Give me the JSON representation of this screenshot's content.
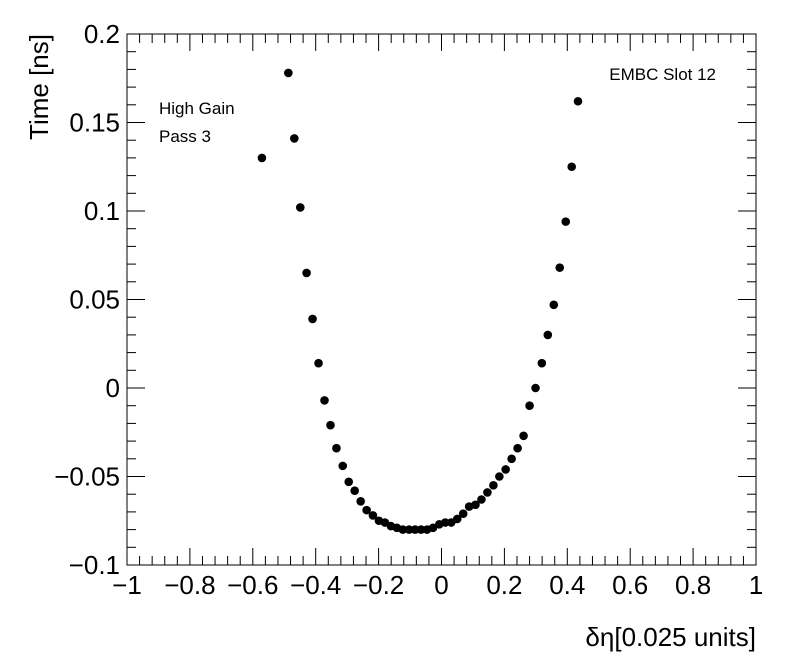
{
  "chart_data": {
    "type": "scatter",
    "xlabel": "δη[0.025 units]",
    "ylabel": "Time [ns]",
    "xlim": [
      -1,
      1
    ],
    "ylim": [
      -0.1,
      0.2
    ],
    "grid": false,
    "x_ticks": [
      -1,
      -0.8,
      -0.6,
      -0.4,
      -0.2,
      0,
      0.2,
      0.4,
      0.6,
      0.8,
      1
    ],
    "x_tick_labels": [
      "−1",
      "−0.8",
      "−0.6",
      "−0.4",
      "−0.2",
      "0",
      "0.2",
      "0.4",
      "0.6",
      "0.8",
      "1"
    ],
    "y_ticks": [
      -0.1,
      -0.05,
      0,
      0.05,
      0.1,
      0.15,
      0.2
    ],
    "y_tick_labels": [
      "−0.1",
      "−0.05",
      "0",
      "0.05",
      "0.1",
      "0.15",
      "0.2"
    ],
    "annotations": {
      "gain": "High Gain",
      "pass": "Pass 3",
      "slot": "EMBC Slot 12"
    },
    "marker_color": "#000000",
    "series": [
      {
        "points": [
          [
            -0.571,
            0.13
          ],
          [
            -0.487,
            0.178
          ],
          [
            -0.468,
            0.141
          ],
          [
            -0.449,
            0.102
          ],
          [
            -0.429,
            0.065
          ],
          [
            -0.41,
            0.039
          ],
          [
            -0.391,
            0.014
          ],
          [
            -0.372,
            -0.007
          ],
          [
            -0.353,
            -0.021
          ],
          [
            -0.334,
            -0.034
          ],
          [
            -0.314,
            -0.044
          ],
          [
            -0.295,
            -0.053
          ],
          [
            -0.276,
            -0.058
          ],
          [
            -0.257,
            -0.064
          ],
          [
            -0.238,
            -0.069
          ],
          [
            -0.218,
            -0.072
          ],
          [
            -0.199,
            -0.075
          ],
          [
            -0.18,
            -0.076
          ],
          [
            -0.161,
            -0.078
          ],
          [
            -0.142,
            -0.079
          ],
          [
            -0.123,
            -0.08
          ],
          [
            -0.103,
            -0.08
          ],
          [
            -0.084,
            -0.08
          ],
          [
            -0.065,
            -0.08
          ],
          [
            -0.046,
            -0.08
          ],
          [
            -0.027,
            -0.079
          ],
          [
            -0.007,
            -0.077
          ],
          [
            0.012,
            -0.076
          ],
          [
            0.031,
            -0.076
          ],
          [
            0.05,
            -0.074
          ],
          [
            0.069,
            -0.071
          ],
          [
            0.088,
            -0.067
          ],
          [
            0.108,
            -0.066
          ],
          [
            0.127,
            -0.063
          ],
          [
            0.146,
            -0.059
          ],
          [
            0.165,
            -0.055
          ],
          [
            0.184,
            -0.05
          ],
          [
            0.204,
            -0.046
          ],
          [
            0.223,
            -0.04
          ],
          [
            0.242,
            -0.034
          ],
          [
            0.261,
            -0.027
          ],
          [
            0.28,
            -0.01
          ],
          [
            0.299,
            0.0
          ],
          [
            0.319,
            0.014
          ],
          [
            0.338,
            0.03
          ],
          [
            0.357,
            0.047
          ],
          [
            0.376,
            0.068
          ],
          [
            0.395,
            0.094
          ],
          [
            0.414,
            0.125
          ],
          [
            0.434,
            0.162
          ]
        ]
      }
    ]
  }
}
